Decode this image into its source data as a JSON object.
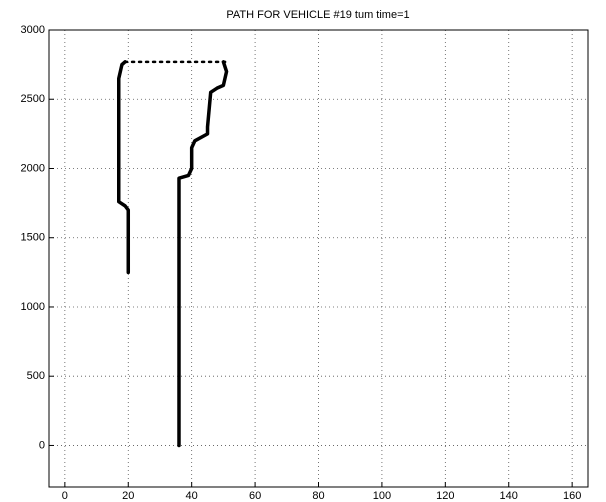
{
  "chart_data": {
    "type": "line",
    "title": "PATH FOR VEHICLE #19 tum time=1",
    "xlim": [
      -5,
      165
    ],
    "xticks": [
      0,
      20,
      40,
      60,
      80,
      100,
      120,
      140,
      160
    ],
    "ylim": [
      -300,
      3000
    ],
    "yticks": [
      0,
      500,
      1000,
      1500,
      2000,
      2500,
      3000
    ],
    "grid": true,
    "series": [
      {
        "color": "#000000",
        "style": "solid",
        "x": [
          20,
          20,
          19,
          17,
          17,
          18,
          19
        ],
        "values": [
          1250,
          1700,
          1730,
          1760,
          2650,
          2750,
          2770
        ]
      },
      {
        "color": "#000000",
        "style": "solid",
        "x": [
          36,
          36,
          39,
          40,
          40,
          41,
          45,
          45,
          46,
          48,
          50,
          51,
          50
        ],
        "values": [
          0,
          1930,
          1950,
          2000,
          2150,
          2200,
          2250,
          2300,
          2550,
          2580,
          2600,
          2700,
          2770
        ]
      },
      {
        "color": "#000000",
        "style": "dotted",
        "x": [
          19,
          51
        ],
        "values": [
          2770,
          2770
        ]
      }
    ]
  }
}
